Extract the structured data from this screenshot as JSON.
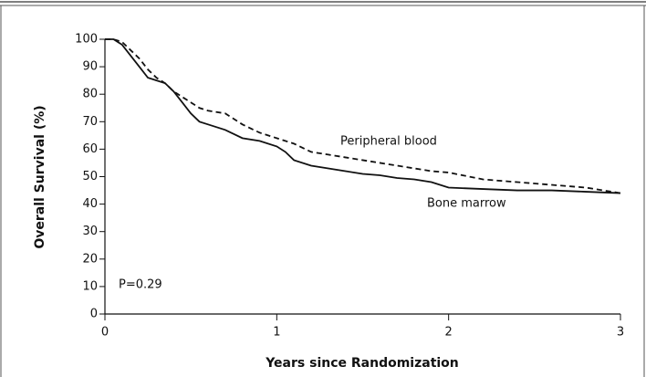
{
  "chart_data": {
    "type": "line",
    "xlabel": "Years since Randomization",
    "ylabel": "Overall Survival (%)",
    "annotations": [
      "Peripheral blood",
      "Bone marrow",
      "P=0.29"
    ],
    "x": [
      0,
      0.05,
      0.1,
      0.15,
      0.2,
      0.25,
      0.3,
      0.35,
      0.4,
      0.45,
      0.5,
      0.55,
      0.6,
      0.7,
      0.8,
      0.9,
      1.0,
      1.05,
      1.1,
      1.2,
      1.3,
      1.4,
      1.5,
      1.6,
      1.7,
      1.8,
      1.9,
      2.0,
      2.2,
      2.4,
      2.6,
      2.8,
      3.0
    ],
    "series": [
      {
        "name": "Peripheral blood",
        "color": "#111111",
        "dashed": true,
        "values": [
          100,
          100,
          99,
          96,
          93,
          89,
          86,
          84,
          81,
          79,
          77,
          75,
          74,
          73,
          69,
          66,
          64,
          63,
          62,
          59,
          58,
          57,
          56,
          55,
          54,
          53,
          52,
          51.5,
          49,
          48,
          47,
          46,
          44
        ]
      },
      {
        "name": "Bone marrow",
        "color": "#111111",
        "dashed": false,
        "values": [
          100,
          100,
          98,
          94,
          90,
          86,
          85,
          84,
          81,
          77,
          73,
          70,
          69,
          67,
          64,
          63,
          61,
          59,
          56,
          54,
          53,
          52,
          51,
          50.5,
          49.5,
          49,
          48,
          46,
          45.5,
          45,
          45,
          44.5,
          44
        ]
      }
    ],
    "xlim": [
      0,
      3
    ],
    "xticks": [
      0,
      1,
      2,
      3
    ],
    "ylim": [
      0,
      100
    ],
    "yticks": [
      0,
      10,
      20,
      30,
      40,
      50,
      60,
      70,
      80,
      90,
      100
    ]
  }
}
